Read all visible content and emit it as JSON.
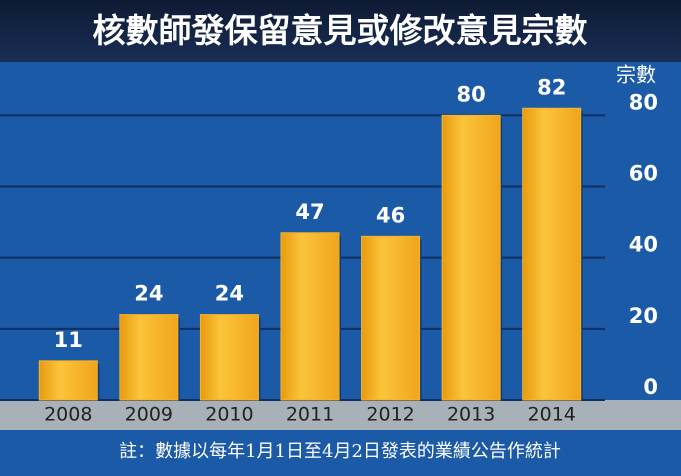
{
  "chart_data": {
    "type": "bar",
    "title": "核數師發保留意見或修改意見宗數",
    "y_axis_label": "宗數",
    "categories": [
      "2008",
      "2009",
      "2010",
      "2011",
      "2012",
      "2013",
      "2014"
    ],
    "values": [
      11,
      24,
      24,
      47,
      46,
      80,
      82
    ],
    "color": "#f7b52a",
    "ylim": [
      0,
      95
    ],
    "yticks": [
      0,
      20,
      40,
      60,
      80
    ],
    "grid": true,
    "footnote": "註：數據以每年1月1日至4月2日發表的業績公告作統計"
  }
}
